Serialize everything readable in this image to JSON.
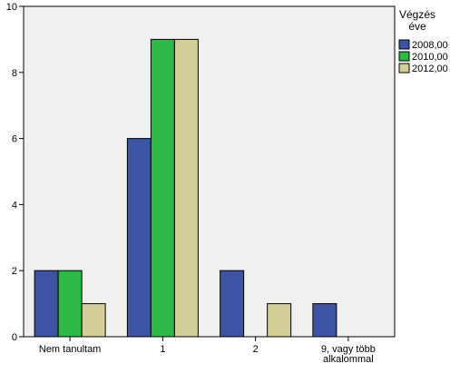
{
  "chart_data": {
    "type": "bar",
    "categories": [
      [
        "Nem tanultam"
      ],
      [
        "1"
      ],
      [
        "2"
      ],
      [
        "9, vagy több",
        "alkalommal"
      ]
    ],
    "series": [
      {
        "name": "2008,00",
        "color": "#3e53a4",
        "values": [
          2,
          6,
          2,
          1
        ]
      },
      {
        "name": "2010,00",
        "color": "#2eb848",
        "values": [
          2,
          9,
          0,
          0
        ]
      },
      {
        "name": "2012,00",
        "color": "#d3ce97",
        "values": [
          1,
          9,
          1,
          0
        ]
      }
    ],
    "ylim": [
      0,
      10
    ],
    "yticks": [
      0,
      2,
      4,
      6,
      8,
      10
    ],
    "legend": {
      "title": [
        "Végzés",
        "éve"
      ],
      "position": "right"
    },
    "plot_background": "#f0f0f0",
    "grid": false
  }
}
